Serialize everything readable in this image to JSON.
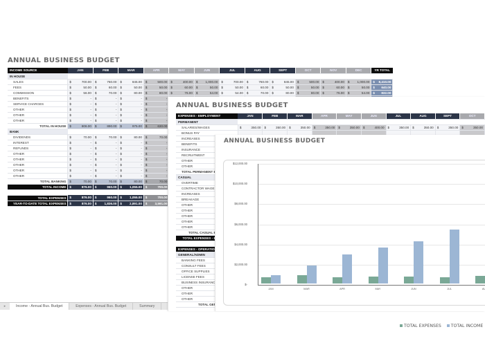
{
  "income_sheet": {
    "title": "ANNUAL BUSINESS BUDGET",
    "header_label": "INCOME SOURCE",
    "months": [
      "JAN",
      "FEB",
      "MAR",
      "APR",
      "MAY",
      "JUN",
      "JUL",
      "AUG",
      "SEPT",
      "OCT",
      "NOV",
      "DEC"
    ],
    "total_header": "YR TOTAL",
    "sections": [
      {
        "name": "IN HOUSE",
        "rows": [
          {
            "label": "SALES",
            "values": [
              "700.00",
              "760.00",
              "845.00",
              "500.00",
              "400.00",
              "1,000.00",
              "700.00",
              "760.00",
              "845.00",
              "500.00",
              "400.00",
              "1,000.00"
            ],
            "total": "8,410.00"
          },
          {
            "label": "FEES",
            "values": [
              "50.00",
              "60.00",
              "50.00",
              "50.00",
              "60.00",
              "50.00",
              "50.00",
              "60.00",
              "50.00",
              "50.00",
              "60.00",
              "50.00"
            ],
            "total": "640.00"
          },
          {
            "label": "COMMISSION",
            "values": [
              "56.00",
              "70.00",
              "80.00",
              "80.00",
              "76.00",
              "54.00",
              "54.00",
              "70.00",
              "80.00",
              "80.00",
              "76.00",
              "54.00"
            ],
            "total": "832.00"
          },
          {
            "label": "BENEFITS",
            "values": [
              "-",
              "-",
              "-",
              "-"
            ]
          },
          {
            "label": "SERVICE CHARGES",
            "values": [
              "-",
              "-",
              "-",
              "-"
            ]
          },
          {
            "label": "OTHER",
            "values": [
              "-",
              "-",
              "-",
              "-"
            ]
          },
          {
            "label": "OTHER",
            "values": [
              "-",
              "-",
              "-",
              "-"
            ]
          },
          {
            "label": "OTHER",
            "values": [
              "-",
              "-",
              "-",
              "-"
            ]
          }
        ],
        "total_label": "TOTAL IN HOUSE",
        "total_values": [
          "806.00",
          "890.00",
          "975.00",
          "630.00"
        ]
      },
      {
        "name": "BANK",
        "rows": [
          {
            "label": "DIVIDENDS",
            "values": [
              "70.00",
              "70.00",
              "80.00",
              "70.00"
            ]
          },
          {
            "label": "INTEREST",
            "values": [
              "-",
              "-",
              "-",
              "-"
            ]
          },
          {
            "label": "REFUNDS",
            "values": [
              "-",
              "-",
              "-",
              "-"
            ]
          },
          {
            "label": "OTHER",
            "values": [
              "-",
              "-",
              "-",
              "-"
            ]
          },
          {
            "label": "OTHER",
            "values": [
              "-",
              "-",
              "-",
              "-"
            ]
          },
          {
            "label": "OTHER",
            "values": [
              "-",
              "-",
              "-",
              "-"
            ]
          },
          {
            "label": "OTHER",
            "values": [
              "-",
              "-",
              "-",
              "-"
            ]
          },
          {
            "label": "OTHER",
            "values": [
              "-",
              "-",
              "-",
              "-"
            ]
          }
        ],
        "total_label": "TOTAL BANKING",
        "total_values": [
          "70.00",
          "70.00",
          "80.00",
          "70.00"
        ]
      }
    ],
    "total_income": {
      "label": "TOTAL INCOME",
      "values": [
        "876.00",
        "960.00",
        "1,055.00",
        "700.00"
      ]
    },
    "total_expenses": {
      "label": "TOTAL EXPENSES",
      "values": [
        "876.00",
        "960.00",
        "1,055.00",
        "700.00"
      ]
    },
    "ytd_expenses": {
      "label": "YEAR-TO-DATE TOTAL EXPENSES",
      "values": [
        "876.00",
        "1,836.00",
        "2,891.00",
        "3,591.00"
      ]
    },
    "currency": "$"
  },
  "tabs": {
    "items": [
      {
        "label": "Income - Annual Bus. Budget",
        "active": true
      },
      {
        "label": "Expenses - Annual Bus. Budget",
        "active": false
      },
      {
        "label": "Summary",
        "active": false
      }
    ]
  },
  "expenses_sheet": {
    "title": "ANNUAL BUSINESS BUDGET",
    "header_label": "EXPENSES - EMPLOYMENT",
    "months": [
      "JAN",
      "FEB",
      "MAR",
      "APR",
      "MAY",
      "JUN",
      "JUL",
      "AUG",
      "SEPT",
      "OCT"
    ],
    "permanent": {
      "name": "PERMANENT",
      "rows": [
        {
          "label": "SALARIES/WAGES",
          "values": [
            "350.00",
            "350.00",
            "350.00",
            "350.00",
            "350.00",
            "400.00",
            "350.00",
            "350.00",
            "350.00",
            "350.00"
          ]
        },
        {
          "label": "BONUS PAY"
        },
        {
          "label": "INCREASES"
        },
        {
          "label": "BENEFITS"
        },
        {
          "label": "INSURANCE"
        },
        {
          "label": "RECRUITMENT"
        },
        {
          "label": "OTHER"
        },
        {
          "label": "OTHER"
        }
      ],
      "total_label": "TOTAL PERMANENT EMPLOYMENT"
    },
    "casual": {
      "name": "CASUAL",
      "rows": [
        {
          "label": "OVERTIME"
        },
        {
          "label": "CONTRACTOR WAGES"
        },
        {
          "label": "INCREASES"
        },
        {
          "label": "BREAKAGE"
        },
        {
          "label": "OTHER"
        },
        {
          "label": "OTHER"
        },
        {
          "label": "OTHER"
        },
        {
          "label": "OTHER"
        },
        {
          "label": "OTHER"
        }
      ],
      "total_label": "TOTAL CASUAL EMPLOYMENT"
    },
    "total_employment_label": "TOTAL EXPENSES - EMPLOYMENT",
    "operations": {
      "header_label": "EXPENSES - OPERATIONS",
      "name": "GENERAL/ADMIN",
      "rows": [
        {
          "label": "BANKING FEES"
        },
        {
          "label": "CONSULT FEES"
        },
        {
          "label": "OFFICE SUPPLIES"
        },
        {
          "label": "LICENSE FEES"
        },
        {
          "label": "BUSINESS INSURANCE"
        },
        {
          "label": "OTHER"
        },
        {
          "label": "OTHER"
        },
        {
          "label": "OTHER"
        }
      ],
      "total_label": "TOTAL GENERAL/ADMIN"
    }
  },
  "summary_sheet": {
    "title": "ANNUAL BUSINESS BUDGET"
  },
  "chart_data": {
    "type": "bar",
    "title": "",
    "categories": [
      "JAN",
      "MAR",
      "APR",
      "MAY",
      "JUN",
      "JUL",
      "AUG"
    ],
    "series": [
      {
        "name": "TOTAL EXPENSES",
        "color": "#7aa896",
        "values": [
          640,
          800,
          640,
          660,
          700,
          640,
          750
        ]
      },
      {
        "name": "TOTAL INCOME",
        "color": "#9cb6d4",
        "values": [
          840,
          1800,
          2860,
          3560,
          4160,
          5320,
          6190
        ]
      }
    ],
    "y_ticks": [
      "$12,000.00",
      "$10,000.00",
      "$8,000.00",
      "$6,000.00",
      "$4,000.00",
      "$2,000.00",
      "$-"
    ],
    "ylim": [
      0,
      12000
    ],
    "xlabel": "",
    "ylabel": "",
    "grid": true,
    "legend_position": "bottom-right"
  }
}
